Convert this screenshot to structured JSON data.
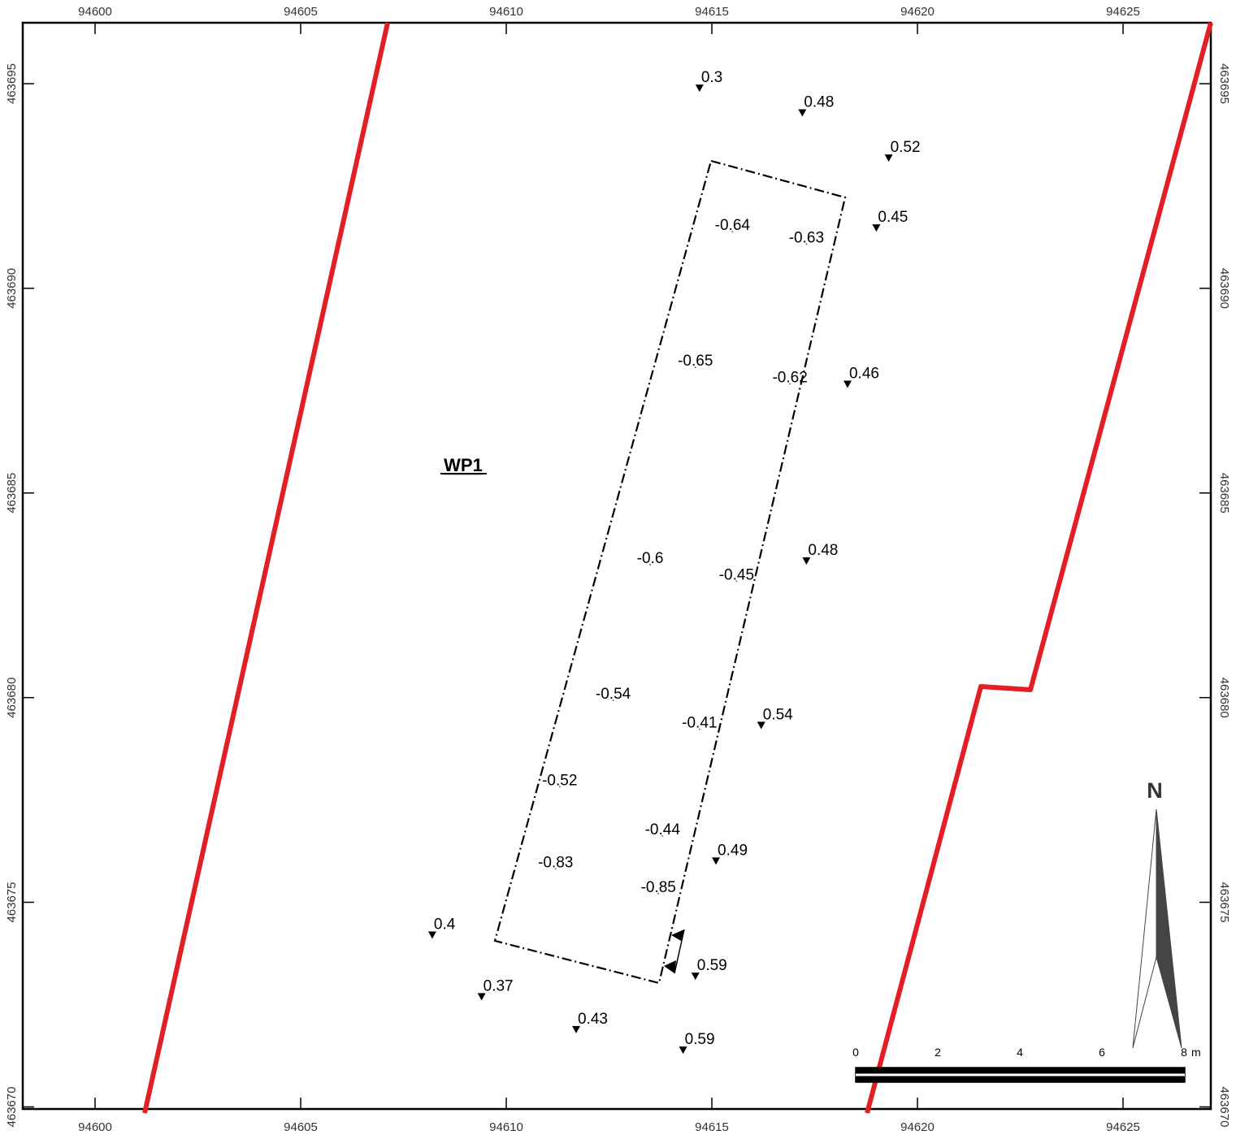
{
  "frame": {
    "x_ticks": [
      "94600",
      "94605",
      "94610",
      "94615",
      "94620",
      "94625"
    ],
    "y_ticks": [
      "463695",
      "463690",
      "463685",
      "463680",
      "463675",
      "463670"
    ]
  },
  "area_label": "WP1",
  "points_outside": [
    {
      "label": "0.3",
      "e": 94614.7,
      "n": 463694.8
    },
    {
      "label": "0.48",
      "e": 94617.2,
      "n": 463694.2
    },
    {
      "label": "0.52",
      "e": 94619.3,
      "n": 463693.1
    },
    {
      "label": "0.45",
      "e": 94619.0,
      "n": 463691.4
    },
    {
      "label": "0.46",
      "e": 94618.3,
      "n": 463687.6
    },
    {
      "label": "0.48",
      "e": 94617.3,
      "n": 463683.3
    },
    {
      "label": "0.54",
      "e": 94616.2,
      "n": 463679.3
    },
    {
      "label": "0.49",
      "e": 94615.1,
      "n": 463676.0
    },
    {
      "label": "0.59",
      "e": 94614.6,
      "n": 463673.2
    },
    {
      "label": "0.4",
      "e": 94608.2,
      "n": 463674.2
    },
    {
      "label": "0.37",
      "e": 94609.4,
      "n": 463672.7
    },
    {
      "label": "0.43",
      "e": 94611.7,
      "n": 463671.9
    },
    {
      "label": "0.59",
      "e": 94614.3,
      "n": 463671.4
    }
  ],
  "points_inside": [
    {
      "label": "-0.64",
      "e": 94615.5,
      "n": 463691.3
    },
    {
      "label": "-0.63",
      "e": 94617.3,
      "n": 463691.0
    },
    {
      "label": "-0.65",
      "e": 94614.6,
      "n": 463688.0
    },
    {
      "label": "-0.62",
      "e": 94616.9,
      "n": 463687.6
    },
    {
      "label": "-0.6",
      "e": 94613.5,
      "n": 463683.2
    },
    {
      "label": "-0.45",
      "e": 94615.6,
      "n": 463682.8
    },
    {
      "label": "-0.54",
      "e": 94612.6,
      "n": 463679.9
    },
    {
      "label": "-0.41",
      "e": 94614.7,
      "n": 463679.2
    },
    {
      "label": "-0.52",
      "e": 94611.3,
      "n": 463677.8
    },
    {
      "label": "-0.44",
      "e": 94613.8,
      "n": 463676.6
    },
    {
      "label": "-0.83",
      "e": 94611.2,
      "n": 463675.8
    },
    {
      "label": "-0.85",
      "e": 94613.7,
      "n": 463675.2
    }
  ],
  "scale_bar": {
    "labels": [
      "0",
      "2",
      "4",
      "6",
      "8"
    ],
    "unit": "m"
  },
  "north_arrow": {
    "label": "N"
  },
  "colors": {
    "boundary": "#e31e24",
    "frame": "#000000",
    "north_fill": "#444444"
  }
}
